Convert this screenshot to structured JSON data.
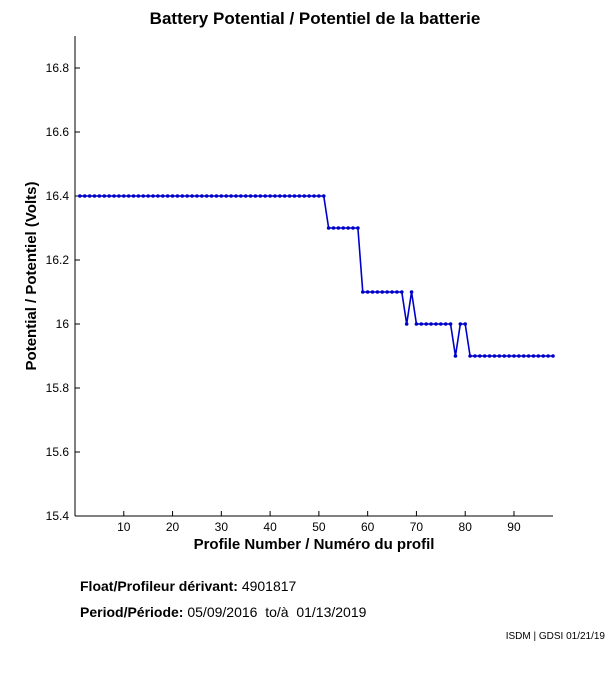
{
  "chart_data": {
    "type": "line",
    "title": "Battery Potential / Potentiel de la batterie",
    "xlabel": "Profile Number / Numéro du profil",
    "ylabel": "Potential / Potentiel (Volts)",
    "xlim": [
      0,
      98
    ],
    "ylim": [
      15.4,
      16.9
    ],
    "xticks": [
      10,
      20,
      30,
      40,
      50,
      60,
      70,
      80,
      90
    ],
    "yticks": [
      15.4,
      15.6,
      15.8,
      16,
      16.2,
      16.4,
      16.6,
      16.8
    ],
    "ytick_labels": [
      "15.4",
      "15.6",
      "15.8",
      "16",
      "16.2",
      "16.4",
      "16.6",
      "16.8"
    ],
    "grid": false,
    "color": "#0000cc",
    "marker": "dot",
    "series": [
      {
        "x": [
          1,
          2,
          3,
          4,
          5,
          6,
          7,
          8,
          9,
          10,
          11,
          12,
          13,
          14,
          15,
          16,
          17,
          18,
          19,
          20,
          21,
          22,
          23,
          24,
          25,
          26,
          27,
          28,
          29,
          30,
          31,
          32,
          33,
          34,
          35,
          36,
          37,
          38,
          39,
          40,
          41,
          42,
          43,
          44,
          45,
          46,
          47,
          48,
          49,
          50,
          51,
          52,
          53,
          54,
          55,
          56,
          57,
          58,
          59,
          60,
          61,
          62,
          63,
          64,
          65,
          66,
          67,
          68,
          69,
          70,
          71,
          72,
          73,
          74,
          75,
          76,
          77,
          78,
          79,
          80,
          81,
          82,
          83,
          84,
          85,
          86,
          87,
          88,
          89,
          90,
          91,
          92,
          93,
          94,
          95,
          96,
          97,
          98
        ],
        "y": [
          16.4,
          16.4,
          16.4,
          16.4,
          16.4,
          16.4,
          16.4,
          16.4,
          16.4,
          16.4,
          16.4,
          16.4,
          16.4,
          16.4,
          16.4,
          16.4,
          16.4,
          16.4,
          16.4,
          16.4,
          16.4,
          16.4,
          16.4,
          16.4,
          16.4,
          16.4,
          16.4,
          16.4,
          16.4,
          16.4,
          16.4,
          16.4,
          16.4,
          16.4,
          16.4,
          16.4,
          16.4,
          16.4,
          16.4,
          16.4,
          16.4,
          16.4,
          16.4,
          16.4,
          16.4,
          16.4,
          16.4,
          16.4,
          16.4,
          16.4,
          16.4,
          16.3,
          16.3,
          16.3,
          16.3,
          16.3,
          16.3,
          16.3,
          16.1,
          16.1,
          16.1,
          16.1,
          16.1,
          16.1,
          16.1,
          16.1,
          16.1,
          16.0,
          16.1,
          16.0,
          16.0,
          16.0,
          16.0,
          16.0,
          16.0,
          16.0,
          16.0,
          15.9,
          16.0,
          16.0,
          15.9,
          15.9,
          15.9,
          15.9,
          15.9,
          15.9,
          15.9,
          15.9,
          15.9,
          15.9,
          15.9,
          15.9,
          15.9,
          15.9,
          15.9,
          15.9,
          15.9,
          15.9
        ]
      }
    ]
  },
  "info": {
    "float_label": "Float/Profileur dérivant:",
    "float_value": "4901817",
    "period_label": "Period/Période:",
    "period_value": "05/09/2016  to/à  01/13/2019"
  },
  "credit": "ISDM | GDSI 01/21/19"
}
